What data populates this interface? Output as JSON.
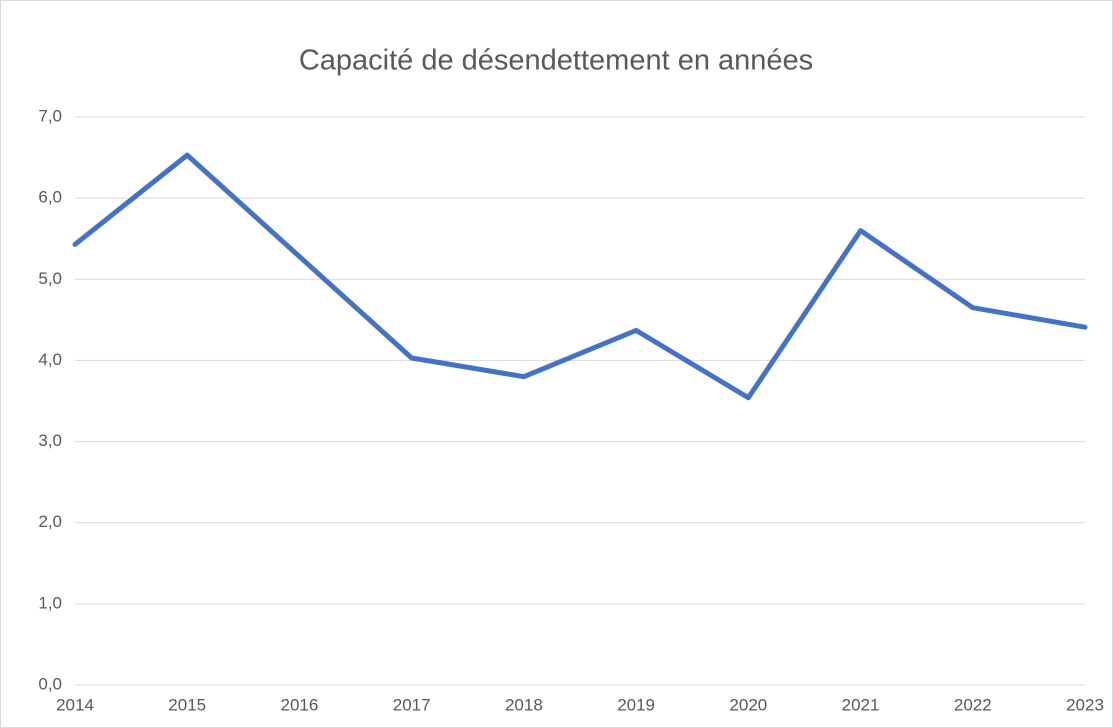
{
  "chart_data": {
    "type": "line",
    "title": "Capacité de désendettement en années",
    "categories": [
      "2014",
      "2015",
      "2016",
      "2017",
      "2018",
      "2019",
      "2020",
      "2021",
      "2022",
      "2023"
    ],
    "values": [
      5.43,
      6.53,
      5.28,
      4.03,
      3.8,
      4.37,
      3.54,
      5.6,
      4.65,
      4.41
    ],
    "color": "#4472c4",
    "ylim": [
      0,
      7
    ],
    "yticks": [
      {
        "value": 0,
        "label": "0,0"
      },
      {
        "value": 1,
        "label": "1,0"
      },
      {
        "value": 2,
        "label": "2,0"
      },
      {
        "value": 3,
        "label": "3,0"
      },
      {
        "value": 4,
        "label": "4,0"
      },
      {
        "value": 5,
        "label": "5,0"
      },
      {
        "value": 6,
        "label": "6,0"
      },
      {
        "value": 7,
        "label": "7,0"
      }
    ],
    "grid": true
  }
}
